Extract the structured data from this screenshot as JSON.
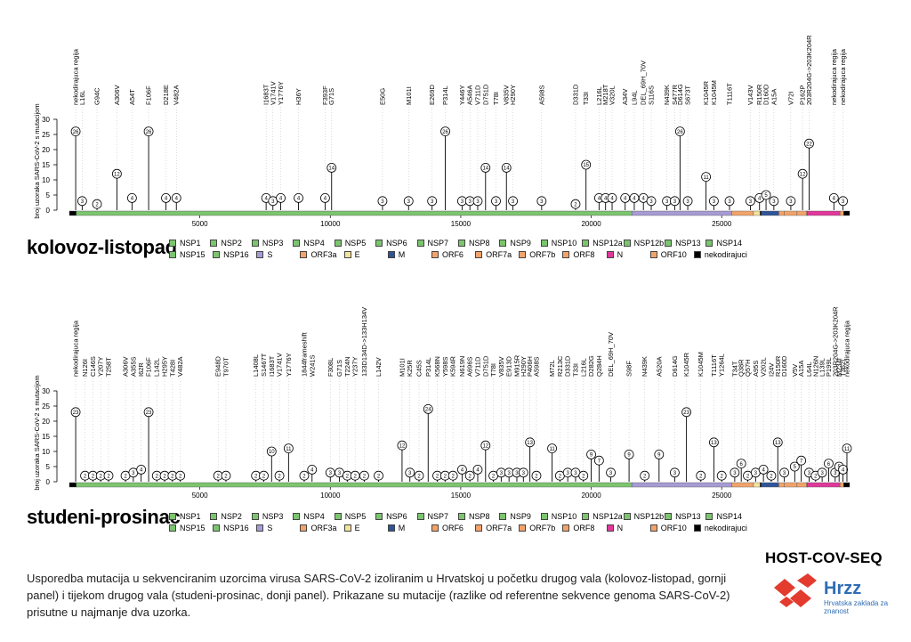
{
  "colors": {
    "NSP": "#7cc56f",
    "S": "#a69bd4",
    "ORF": "#f2a36a",
    "E": "#f4e39a",
    "M": "#2f5597",
    "N": "#e0389a",
    "noncoding": "#000000",
    "brand_red": "#e33b2e",
    "brand_blue": "#2f6db5"
  },
  "legend": [
    {
      "label": "NSP1",
      "color": "#7cc56f"
    },
    {
      "label": "NSP2",
      "color": "#7cc56f"
    },
    {
      "label": "NSP3",
      "color": "#7cc56f"
    },
    {
      "label": "NSP4",
      "color": "#7cc56f"
    },
    {
      "label": "NSP5",
      "color": "#7cc56f"
    },
    {
      "label": "NSP6",
      "color": "#7cc56f"
    },
    {
      "label": "NSP7",
      "color": "#7cc56f"
    },
    {
      "label": "NSP8",
      "color": "#7cc56f"
    },
    {
      "label": "NSP9",
      "color": "#7cc56f"
    },
    {
      "label": "NSP10",
      "color": "#7cc56f"
    },
    {
      "label": "NSP12a",
      "color": "#7cc56f"
    },
    {
      "label": "NSP12b",
      "color": "#7cc56f"
    },
    {
      "label": "NSP13",
      "color": "#7cc56f"
    },
    {
      "label": "NSP14",
      "color": "#7cc56f"
    },
    {
      "label": "NSP15",
      "color": "#7cc56f"
    },
    {
      "label": "NSP16",
      "color": "#7cc56f"
    },
    {
      "label": "S",
      "color": "#a69bd4"
    },
    {
      "label": "ORF3a",
      "color": "#f2a36a"
    },
    {
      "label": "E",
      "color": "#f4e39a"
    },
    {
      "label": "M",
      "color": "#2f5597"
    },
    {
      "label": "ORF6",
      "color": "#f2a36a"
    },
    {
      "label": "ORF7a",
      "color": "#f2a36a"
    },
    {
      "label": "ORF7b",
      "color": "#f2a36a"
    },
    {
      "label": "ORF8",
      "color": "#f2a36a"
    },
    {
      "label": "N",
      "color": "#e0389a"
    },
    {
      "label": "ORF10",
      "color": "#f2a36a"
    },
    {
      "label": "nekodirajuci",
      "color": "#000000"
    }
  ],
  "genome_segments": [
    {
      "start": 0,
      "end": 265,
      "color": "#000000"
    },
    {
      "start": 265,
      "end": 21555,
      "color": "#7cc56f"
    },
    {
      "start": 21555,
      "end": 25384,
      "color": "#a69bd4"
    },
    {
      "start": 25384,
      "end": 26220,
      "color": "#f2a36a"
    },
    {
      "start": 26220,
      "end": 26472,
      "color": "#f4e39a"
    },
    {
      "start": 26472,
      "end": 26523,
      "color": "#000000"
    },
    {
      "start": 26523,
      "end": 27191,
      "color": "#2f5597"
    },
    {
      "start": 27191,
      "end": 27394,
      "color": "#f2a36a"
    },
    {
      "start": 27394,
      "end": 27887,
      "color": "#f2a36a"
    },
    {
      "start": 27887,
      "end": 28259,
      "color": "#f2a36a"
    },
    {
      "start": 28259,
      "end": 28274,
      "color": "#000000"
    },
    {
      "start": 28274,
      "end": 29533,
      "color": "#e0389a"
    },
    {
      "start": 29533,
      "end": 29674,
      "color": "#f2a36a"
    },
    {
      "start": 29674,
      "end": 29903,
      "color": "#000000"
    }
  ],
  "chart_data": [
    {
      "type": "lollipop",
      "title": "kolovoz-listopad",
      "ylabel": "broj uzoraka SARS-CoV-2 s mutacijom",
      "ylim": [
        0,
        30
      ],
      "yticks": [
        0,
        5,
        10,
        15,
        20,
        25,
        30
      ],
      "xlim": [
        0,
        29903
      ],
      "xticks": [
        5000,
        10000,
        15000,
        20000,
        25000
      ],
      "mutations": [
        {
          "pos": 241,
          "count": 26,
          "label": "nekodirajuca regija"
        },
        {
          "pos": 490,
          "count": 3,
          "label": "L16L"
        },
        {
          "pos": 1059,
          "count": 2,
          "label": "G94C"
        },
        {
          "pos": 1820,
          "count": 12,
          "label": "A306V"
        },
        {
          "pos": 2400,
          "count": 4,
          "label": "A54T"
        },
        {
          "pos": 3037,
          "count": 26,
          "label": "F106F"
        },
        {
          "pos": 3700,
          "count": 4,
          "label": "D218E"
        },
        {
          "pos": 4100,
          "count": 4,
          "label": "V482A"
        },
        {
          "pos": 7540,
          "count": 4,
          "label": "I1683T"
        },
        {
          "pos": 7800,
          "count": 3,
          "label": "V1741V"
        },
        {
          "pos": 8100,
          "count": 4,
          "label": "Y1776Y"
        },
        {
          "pos": 8782,
          "count": 4,
          "label": "H36Y"
        },
        {
          "pos": 9800,
          "count": 4,
          "label": "F393F"
        },
        {
          "pos": 10050,
          "count": 14,
          "label": "G71S"
        },
        {
          "pos": 12000,
          "count": 3,
          "label": "E50G"
        },
        {
          "pos": 13000,
          "count": 3,
          "label": "M101I"
        },
        {
          "pos": 13900,
          "count": 3,
          "label": "E269D"
        },
        {
          "pos": 14408,
          "count": 26,
          "label": "P314L"
        },
        {
          "pos": 15050,
          "count": 3,
          "label": "Y446Y"
        },
        {
          "pos": 15350,
          "count": 3,
          "label": "A546A"
        },
        {
          "pos": 15650,
          "count": 3,
          "label": "V711D"
        },
        {
          "pos": 15950,
          "count": 14,
          "label": "D751D"
        },
        {
          "pos": 16350,
          "count": 3,
          "label": "T78I"
        },
        {
          "pos": 16750,
          "count": 14,
          "label": "V835V"
        },
        {
          "pos": 17000,
          "count": 3,
          "label": "H290Y"
        },
        {
          "pos": 18100,
          "count": 3,
          "label": "A598S"
        },
        {
          "pos": 19400,
          "count": 2,
          "label": "D331D"
        },
        {
          "pos": 19800,
          "count": 15,
          "label": "T33I"
        },
        {
          "pos": 20300,
          "count": 4,
          "label": "L216L"
        },
        {
          "pos": 20550,
          "count": 4,
          "label": "M218T"
        },
        {
          "pos": 20800,
          "count": 4,
          "label": "V320L"
        },
        {
          "pos": 21300,
          "count": 4,
          "label": "A34V"
        },
        {
          "pos": 21650,
          "count": 4,
          "label": "L94L"
        },
        {
          "pos": 22000,
          "count": 4,
          "label": "DEL_69H_70V"
        },
        {
          "pos": 22300,
          "count": 3,
          "label": "S116S"
        },
        {
          "pos": 22900,
          "count": 3,
          "label": "N439K"
        },
        {
          "pos": 23200,
          "count": 3,
          "label": "S477R"
        },
        {
          "pos": 23403,
          "count": 26,
          "label": "D614G"
        },
        {
          "pos": 23700,
          "count": 3,
          "label": "S673T"
        },
        {
          "pos": 24400,
          "count": 11,
          "label": "K1045R"
        },
        {
          "pos": 24700,
          "count": 3,
          "label": "K1045M"
        },
        {
          "pos": 25300,
          "count": 3,
          "label": "T1116T"
        },
        {
          "pos": 26100,
          "count": 3,
          "label": "V143V"
        },
        {
          "pos": 26450,
          "count": 4,
          "label": "R150R"
        },
        {
          "pos": 26700,
          "count": 5,
          "label": "D160D"
        },
        {
          "pos": 27000,
          "count": 3,
          "label": "A15A"
        },
        {
          "pos": 27650,
          "count": 3,
          "label": "V72I"
        },
        {
          "pos": 28100,
          "count": 12,
          "label": "P162P"
        },
        {
          "pos": 28350,
          "count": 22,
          "label": "203R204G->203K204R"
        },
        {
          "pos": 29300,
          "count": 4,
          "label": "nekodirajuca regija"
        },
        {
          "pos": 29650,
          "count": 3,
          "label": "nekodirajuca regija"
        }
      ]
    },
    {
      "type": "lollipop",
      "title": "studeni-prosinac",
      "ylabel": "broj uzoraka SARS-CoV-2 s mutacijom",
      "ylim": [
        0,
        30
      ],
      "yticks": [
        0,
        5,
        10,
        15,
        20,
        25,
        30
      ],
      "xlim": [
        0,
        29903
      ],
      "xticks": [
        5000,
        10000,
        15000,
        20000,
        25000
      ],
      "mutations": [
        {
          "pos": 241,
          "count": 23,
          "label": "nekodirajuca regija"
        },
        {
          "pos": 600,
          "count": 2,
          "label": "N126I"
        },
        {
          "pos": 900,
          "count": 2,
          "label": "C146S"
        },
        {
          "pos": 1200,
          "count": 2,
          "label": "Y207Y"
        },
        {
          "pos": 1500,
          "count": 2,
          "label": "T258T"
        },
        {
          "pos": 2150,
          "count": 2,
          "label": "A306V"
        },
        {
          "pos": 2450,
          "count": 3,
          "label": "A355S"
        },
        {
          "pos": 2750,
          "count": 4,
          "label": "I62R"
        },
        {
          "pos": 3037,
          "count": 23,
          "label": "F106F"
        },
        {
          "pos": 3350,
          "count": 2,
          "label": "L142L"
        },
        {
          "pos": 3650,
          "count": 2,
          "label": "H295Y"
        },
        {
          "pos": 3950,
          "count": 2,
          "label": "T428I"
        },
        {
          "pos": 4250,
          "count": 2,
          "label": "V482A"
        },
        {
          "pos": 5700,
          "count": 2,
          "label": "E948D"
        },
        {
          "pos": 6000,
          "count": 2,
          "label": "T970T"
        },
        {
          "pos": 7150,
          "count": 2,
          "label": "L1408L"
        },
        {
          "pos": 7450,
          "count": 2,
          "label": "S1467T"
        },
        {
          "pos": 7750,
          "count": 10,
          "label": "I1683T"
        },
        {
          "pos": 8050,
          "count": 2,
          "label": "V1741V"
        },
        {
          "pos": 8400,
          "count": 11,
          "label": "Y1776Y"
        },
        {
          "pos": 9000,
          "count": 2,
          "label": "1844frameshift"
        },
        {
          "pos": 9300,
          "count": 4,
          "label": "W241S"
        },
        {
          "pos": 10000,
          "count": 3,
          "label": "F308L"
        },
        {
          "pos": 10350,
          "count": 3,
          "label": "G71S"
        },
        {
          "pos": 10650,
          "count": 2,
          "label": "T224N"
        },
        {
          "pos": 10950,
          "count": 2,
          "label": "Y237Y"
        },
        {
          "pos": 11300,
          "count": 2,
          "label": "133D134D->133H134V"
        },
        {
          "pos": 11850,
          "count": 2,
          "label": "L142V"
        },
        {
          "pos": 12750,
          "count": 12,
          "label": "M101I"
        },
        {
          "pos": 13050,
          "count": 3,
          "label": "K25R"
        },
        {
          "pos": 13400,
          "count": 2,
          "label": "C45S"
        },
        {
          "pos": 13750,
          "count": 24,
          "label": "P314L"
        },
        {
          "pos": 14100,
          "count": 2,
          "label": "K568N"
        },
        {
          "pos": 14400,
          "count": 2,
          "label": "Y598S"
        },
        {
          "pos": 14700,
          "count": 2,
          "label": "K594R"
        },
        {
          "pos": 15050,
          "count": 4,
          "label": "N619N"
        },
        {
          "pos": 15350,
          "count": 2,
          "label": "A696S"
        },
        {
          "pos": 15650,
          "count": 4,
          "label": "V711D"
        },
        {
          "pos": 15950,
          "count": 12,
          "label": "D751D"
        },
        {
          "pos": 16250,
          "count": 2,
          "label": "T78I"
        },
        {
          "pos": 16550,
          "count": 3,
          "label": "V835V"
        },
        {
          "pos": 16850,
          "count": 3,
          "label": "E913D"
        },
        {
          "pos": 17150,
          "count": 3,
          "label": "M915R"
        },
        {
          "pos": 17400,
          "count": 3,
          "label": "H290Y"
        },
        {
          "pos": 17650,
          "count": 13,
          "label": "P406H"
        },
        {
          "pos": 17900,
          "count": 2,
          "label": "A598S"
        },
        {
          "pos": 18500,
          "count": 11,
          "label": "M72L"
        },
        {
          "pos": 18800,
          "count": 2,
          "label": "R213C"
        },
        {
          "pos": 19100,
          "count": 3,
          "label": "D331D"
        },
        {
          "pos": 19400,
          "count": 3,
          "label": "T33I"
        },
        {
          "pos": 19700,
          "count": 2,
          "label": "L216L"
        },
        {
          "pos": 20000,
          "count": 9,
          "label": "D282G"
        },
        {
          "pos": 20300,
          "count": 7,
          "label": "Q284H"
        },
        {
          "pos": 20750,
          "count": 3,
          "label": "DEL_69H_70V"
        },
        {
          "pos": 21450,
          "count": 9,
          "label": "S98F"
        },
        {
          "pos": 22050,
          "count": 2,
          "label": "N439K"
        },
        {
          "pos": 22600,
          "count": 9,
          "label": "A520A"
        },
        {
          "pos": 23200,
          "count": 3,
          "label": "D614G"
        },
        {
          "pos": 23650,
          "count": 23,
          "label": "K1045R"
        },
        {
          "pos": 24200,
          "count": 2,
          "label": "K1045M"
        },
        {
          "pos": 24700,
          "count": 13,
          "label": "T1116T"
        },
        {
          "pos": 25000,
          "count": 2,
          "label": "Y1264L"
        },
        {
          "pos": 25500,
          "count": 3,
          "label": "T34T"
        },
        {
          "pos": 25750,
          "count": 6,
          "label": "Q38R"
        },
        {
          "pos": 26000,
          "count": 2,
          "label": "Q57H"
        },
        {
          "pos": 26300,
          "count": 3,
          "label": "A95S"
        },
        {
          "pos": 26600,
          "count": 4,
          "label": "V202L"
        },
        {
          "pos": 26900,
          "count": 2,
          "label": "I24V"
        },
        {
          "pos": 27150,
          "count": 13,
          "label": "R150R"
        },
        {
          "pos": 27400,
          "count": 3,
          "label": "D160D"
        },
        {
          "pos": 27800,
          "count": 5,
          "label": "V5V"
        },
        {
          "pos": 28050,
          "count": 7,
          "label": "A15A"
        },
        {
          "pos": 28350,
          "count": 3,
          "label": "L64L"
        },
        {
          "pos": 28600,
          "count": 2,
          "label": "N126N"
        },
        {
          "pos": 28850,
          "count": 3,
          "label": "L139L"
        },
        {
          "pos": 29100,
          "count": 6,
          "label": "P199L"
        },
        {
          "pos": 29350,
          "count": 3,
          "label": "203R204G->203K204R"
        },
        {
          "pos": 29500,
          "count": 5,
          "label": "M234I"
        },
        {
          "pos": 29650,
          "count": 4,
          "label": "T362I"
        },
        {
          "pos": 29800,
          "count": 11,
          "label": "nekodirajuca regija"
        }
      ]
    }
  ],
  "caption": "Usporedba mutacija u sekvenciranim uzorcima virusa SARS-CoV-2 izoliranim u Hrvatskoj u početku drugog vala (kolovoz-listopad, gornji panel) i tijekom drugog vala (studeni-prosinac, donji panel). Prikazane su mutacije (razlike od referentne sekvence genoma SARS-CoV-2) prisutne u najmanje dva uzorka.",
  "brand": {
    "project": "HOST-COV-SEQ",
    "name": "Hrzz",
    "subtitle": "Hrvatska zaklada za znanost"
  }
}
